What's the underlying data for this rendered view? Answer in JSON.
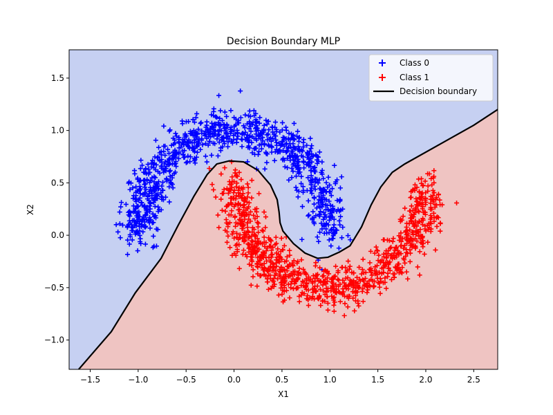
{
  "chart_data": {
    "type": "scatter",
    "title": "Decision Boundary MLP",
    "xlabel": "X1",
    "ylabel": "X2",
    "xlim": [
      -1.72,
      2.75
    ],
    "ylim": [
      -1.28,
      1.77
    ],
    "xticks": [
      -1.5,
      -1.0,
      -0.5,
      0.0,
      0.5,
      1.0,
      1.5,
      2.0,
      2.5
    ],
    "xtick_labels": [
      "−1.5",
      "−1.0",
      "−0.5",
      "0.0",
      "0.5",
      "1.0",
      "1.5",
      "2.0",
      "2.5"
    ],
    "yticks": [
      -1.0,
      -0.5,
      0.0,
      0.5,
      1.0,
      1.5
    ],
    "ytick_labels": [
      "−1.0",
      "−0.5",
      "0.0",
      "0.5",
      "1.0",
      "1.5"
    ],
    "grid": false,
    "legend_position": "top-right",
    "region_colors": {
      "class0": "#c6d0f2",
      "class1": "#efc4c2"
    },
    "series": [
      {
        "name": "Class 0",
        "marker": "plus",
        "color": "#0000ff",
        "shape": "upper moon",
        "arc_center": [
          0.0,
          0.0
        ],
        "arc_radius": 1.0,
        "arc_degrees": [
          0,
          180
        ],
        "noise": 0.1,
        "n_points": 1000
      },
      {
        "name": "Class 1",
        "marker": "plus",
        "color": "#ff0000",
        "shape": "lower moon",
        "arc_center": [
          1.0,
          0.5
        ],
        "arc_radius": 1.0,
        "arc_degrees": [
          180,
          360
        ],
        "noise": 0.1,
        "n_points": 1000
      }
    ],
    "decision_boundary": {
      "name": "Decision boundary",
      "color": "#000000",
      "points": [
        [
          -1.62,
          -1.28
        ],
        [
          -1.28,
          -0.92
        ],
        [
          -1.03,
          -0.55
        ],
        [
          -0.76,
          -0.22
        ],
        [
          -0.58,
          0.1
        ],
        [
          -0.42,
          0.37
        ],
        [
          -0.28,
          0.58
        ],
        [
          -0.18,
          0.68
        ],
        [
          -0.05,
          0.71
        ],
        [
          0.1,
          0.7
        ],
        [
          0.25,
          0.62
        ],
        [
          0.38,
          0.48
        ],
        [
          0.45,
          0.34
        ],
        [
          0.47,
          0.22
        ],
        [
          0.48,
          0.12
        ],
        [
          0.51,
          0.04
        ],
        [
          0.62,
          -0.08
        ],
        [
          0.74,
          -0.17
        ],
        [
          0.87,
          -0.22
        ],
        [
          0.98,
          -0.21
        ],
        [
          1.1,
          -0.16
        ],
        [
          1.21,
          -0.1
        ],
        [
          1.33,
          0.08
        ],
        [
          1.43,
          0.29
        ],
        [
          1.53,
          0.46
        ],
        [
          1.65,
          0.6
        ],
        [
          1.78,
          0.68
        ],
        [
          2.15,
          0.87
        ],
        [
          2.5,
          1.05
        ],
        [
          2.75,
          1.2
        ]
      ]
    },
    "legend": {
      "entries": [
        "Class 0",
        "Class 1",
        "Decision boundary"
      ]
    }
  }
}
